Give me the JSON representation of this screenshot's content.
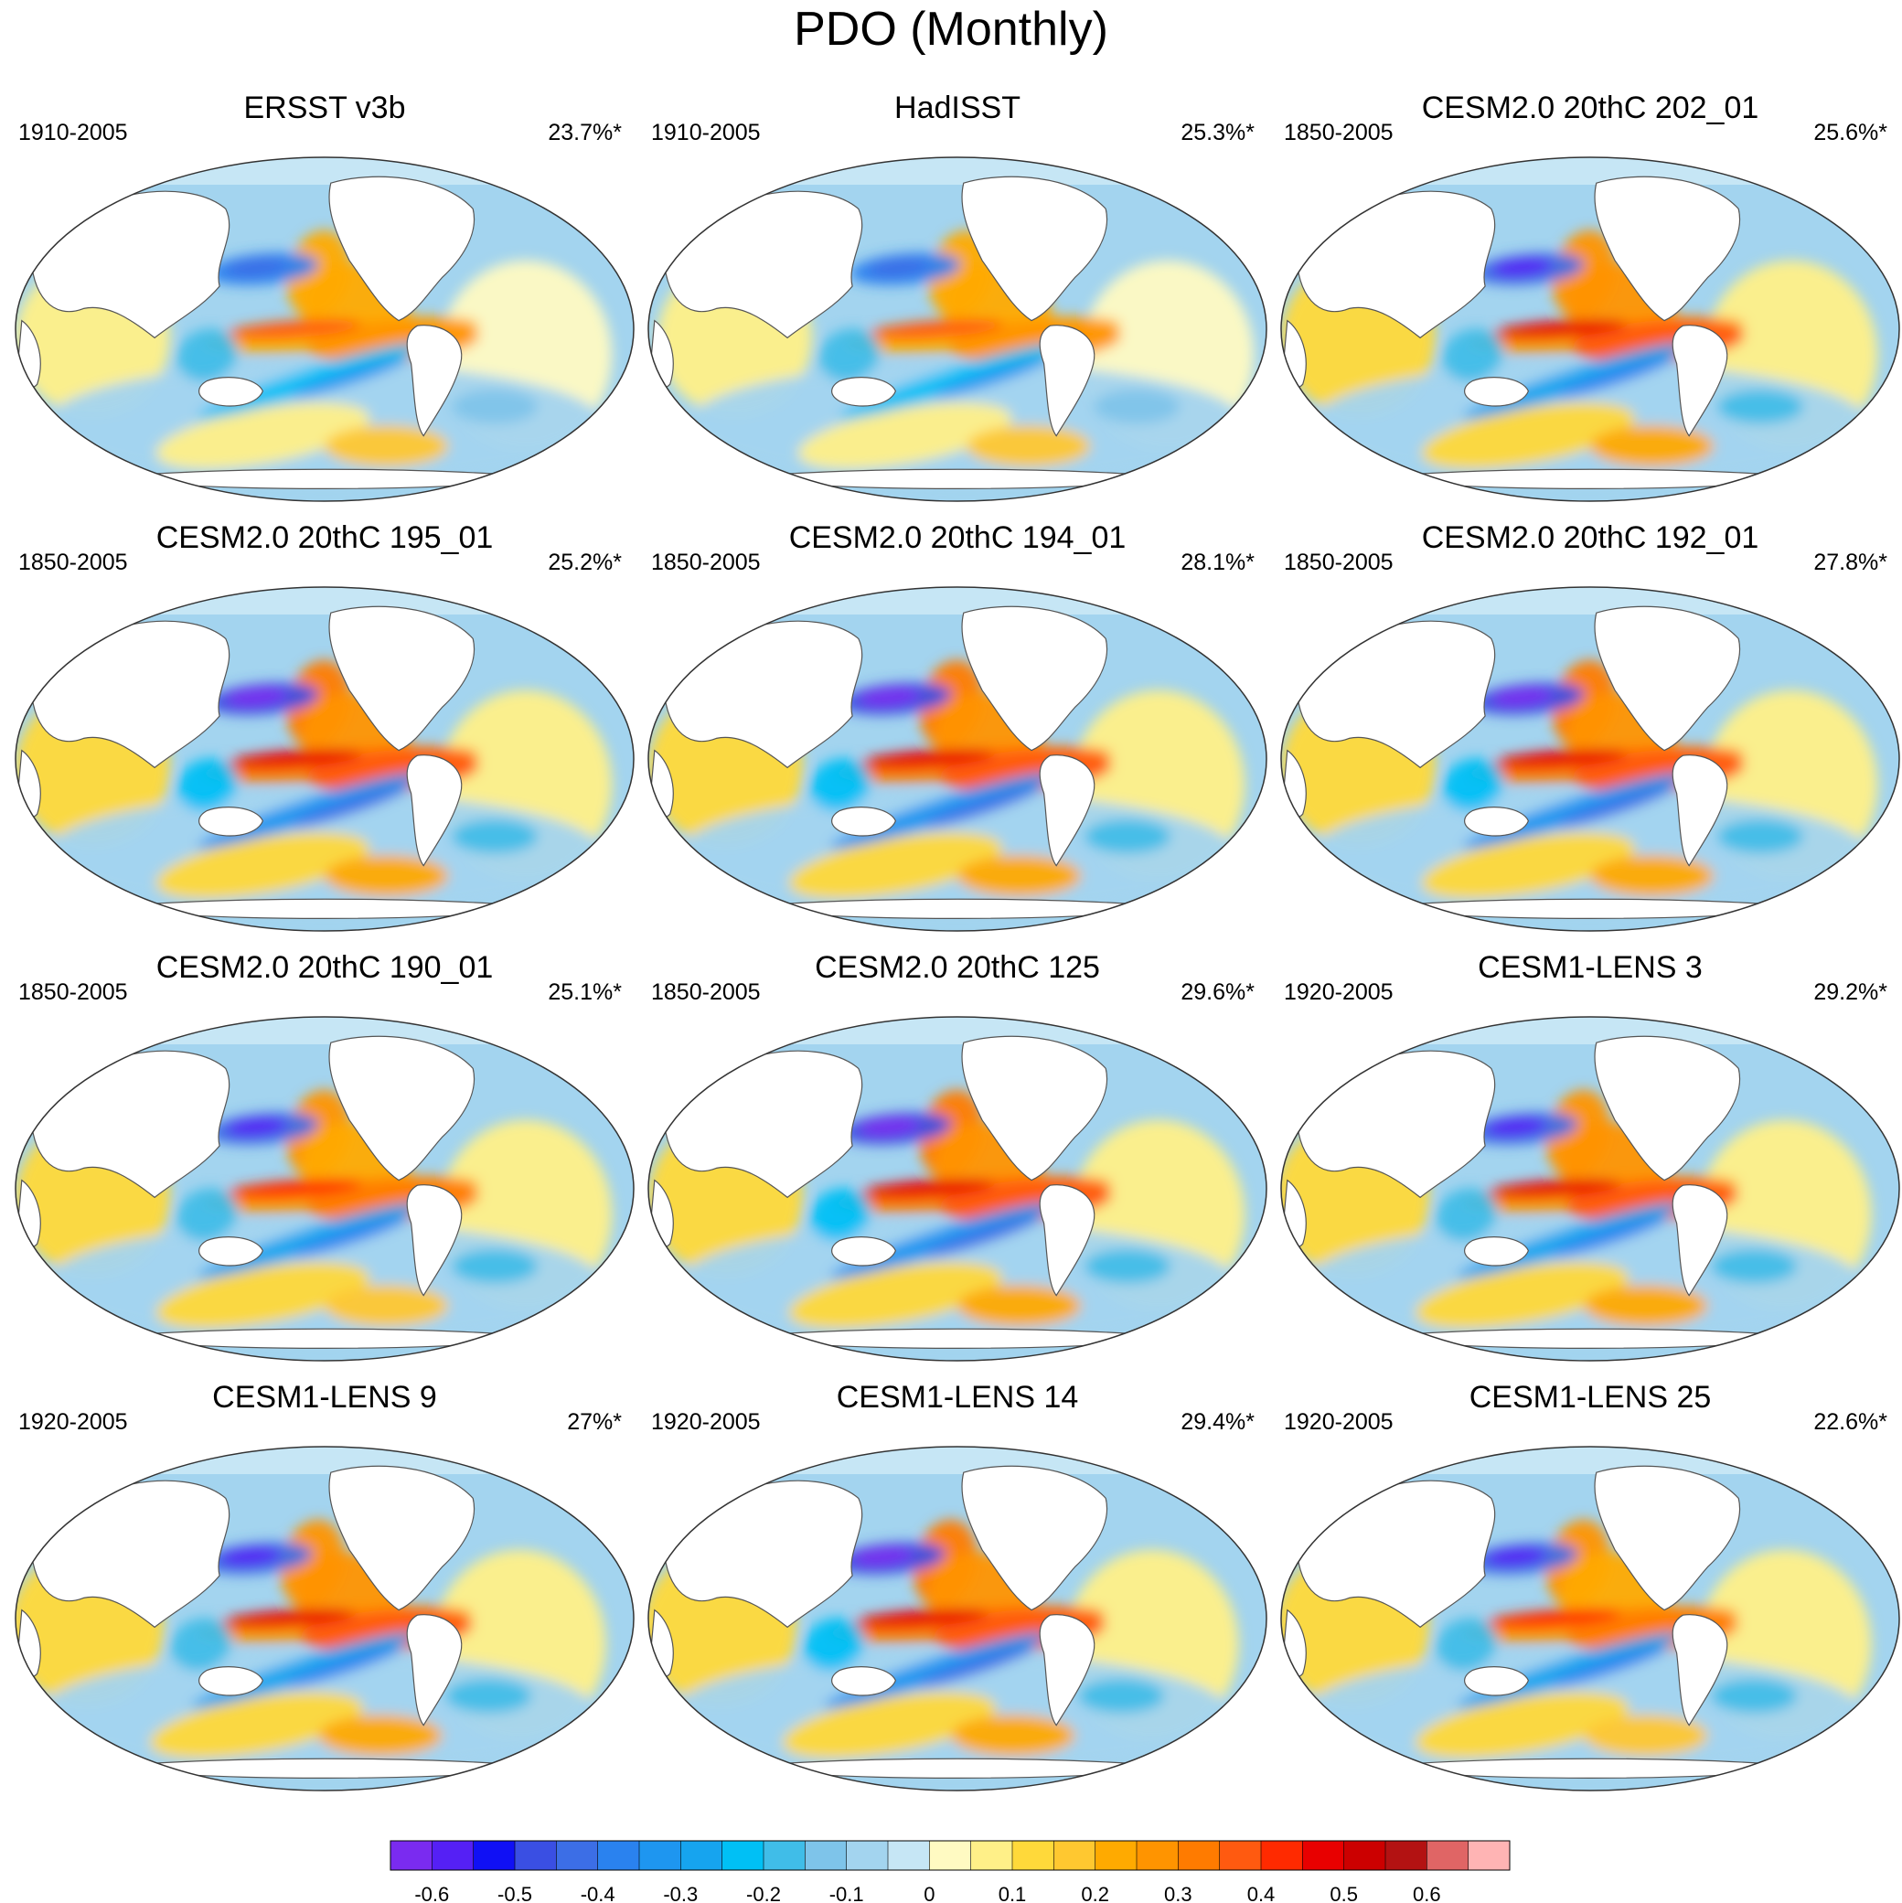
{
  "figure": {
    "title": "PDO (Monthly)"
  },
  "panels": [
    {
      "title": "ERSST v3b",
      "period": "1910-2005",
      "variance": "23.7%*",
      "strength": 0.8,
      "pattern": "obs1"
    },
    {
      "title": "HadISST",
      "period": "1910-2005",
      "variance": "25.3%*",
      "strength": 0.8,
      "pattern": "obs2"
    },
    {
      "title": "CESM2.0 20thC 202_01",
      "period": "1850-2005",
      "variance": "25.6%*",
      "strength": 1.0,
      "pattern": "model"
    },
    {
      "title": "CESM2.0 20thC 195_01",
      "period": "1850-2005",
      "variance": "25.2%*",
      "strength": 1.05,
      "pattern": "model"
    },
    {
      "title": "CESM2.0 20thC 194_01",
      "period": "1850-2005",
      "variance": "28.1%*",
      "strength": 1.1,
      "pattern": "model"
    },
    {
      "title": "CESM2.0 20thC 192_01",
      "period": "1850-2005",
      "variance": "27.8%*",
      "strength": 1.05,
      "pattern": "model"
    },
    {
      "title": "CESM2.0 20thC 190_01",
      "period": "1850-2005",
      "variance": "25.1%*",
      "strength": 0.95,
      "pattern": "model"
    },
    {
      "title": "CESM2.0 20thC 125",
      "period": "1850-2005",
      "variance": "29.6%*",
      "strength": 1.1,
      "pattern": "model"
    },
    {
      "title": "CESM1-LENS 3",
      "period": "1920-2005",
      "variance": "29.2%*",
      "strength": 1.0,
      "pattern": "lens"
    },
    {
      "title": "CESM1-LENS 9",
      "period": "1920-2005",
      "variance": "27%*",
      "strength": 1.0,
      "pattern": "lens"
    },
    {
      "title": "CESM1-LENS 14",
      "period": "1920-2005",
      "variance": "29.4%*",
      "strength": 1.1,
      "pattern": "lens"
    },
    {
      "title": "CESM1-LENS 25",
      "period": "1920-2005",
      "variance": "22.6%*",
      "strength": 0.95,
      "pattern": "lens"
    }
  ],
  "colorbar": {
    "colors": [
      "#7a2bf0",
      "#5520f5",
      "#1010f5",
      "#3a4fe3",
      "#3c6ee6",
      "#2a82ef",
      "#1e96f0",
      "#16a4ef",
      "#00c0f5",
      "#40bde8",
      "#7ec4ea",
      "#a3d4ef",
      "#c6e6f5",
      "#fffac2",
      "#fff088",
      "#ffd93a",
      "#ffc830",
      "#ffaa00",
      "#ff9400",
      "#ff7b00",
      "#ff5a10",
      "#ff2a00",
      "#e80000",
      "#cc0000",
      "#b31212",
      "#e06565",
      "#ffb4b4"
    ],
    "tick_labels": [
      "-0.6",
      "-0.5",
      "-0.4",
      "-0.3",
      "-0.2",
      "-0.1",
      "0",
      "0.1",
      "0.2",
      "0.3",
      "0.4",
      "0.5",
      "0.6"
    ],
    "tick_values": [
      -0.6,
      -0.5,
      -0.4,
      -0.3,
      -0.2,
      -0.1,
      0,
      0.1,
      0.2,
      0.3,
      0.4,
      0.5,
      0.6
    ]
  },
  "map_colors": {
    "land": "#ffffff",
    "coast": "#555555",
    "outline": "#333333"
  }
}
